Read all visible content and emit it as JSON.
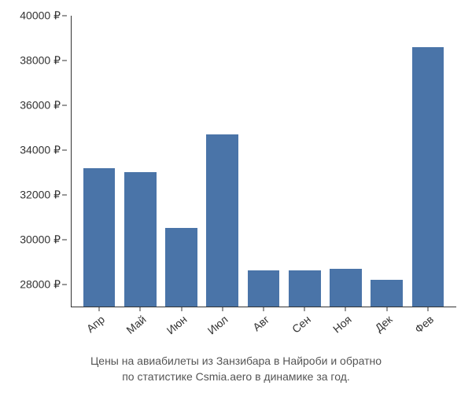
{
  "chart": {
    "type": "bar",
    "categories": [
      "Апр",
      "Май",
      "Июн",
      "Июл",
      "Авг",
      "Сен",
      "Ноя",
      "Дек",
      "Фев"
    ],
    "values": [
      33200,
      33000,
      30500,
      34700,
      28600,
      28600,
      28700,
      28200,
      38600
    ],
    "bar_color": "#4a74a8",
    "ylim_min": 27000,
    "ylim_max": 40000,
    "ytick_step": 2000,
    "y_ticks": [
      28000,
      30000,
      32000,
      34000,
      36000,
      38000,
      40000
    ],
    "y_tick_labels": [
      "28000 ₽",
      "30000 ₽",
      "32000 ₽",
      "34000 ₽",
      "36000 ₽",
      "38000 ₽",
      "40000 ₽"
    ],
    "currency_symbol": "₽",
    "background_color": "#ffffff",
    "tick_fontsize": 14,
    "caption_fontsize": 14,
    "caption_line1": "Цены на авиабилеты из Занзибара в Найроби и обратно",
    "caption_line2": "по статистике Csmia.aero в динамике за год.",
    "x_label_rotation": -40,
    "bar_width": 0.78
  }
}
